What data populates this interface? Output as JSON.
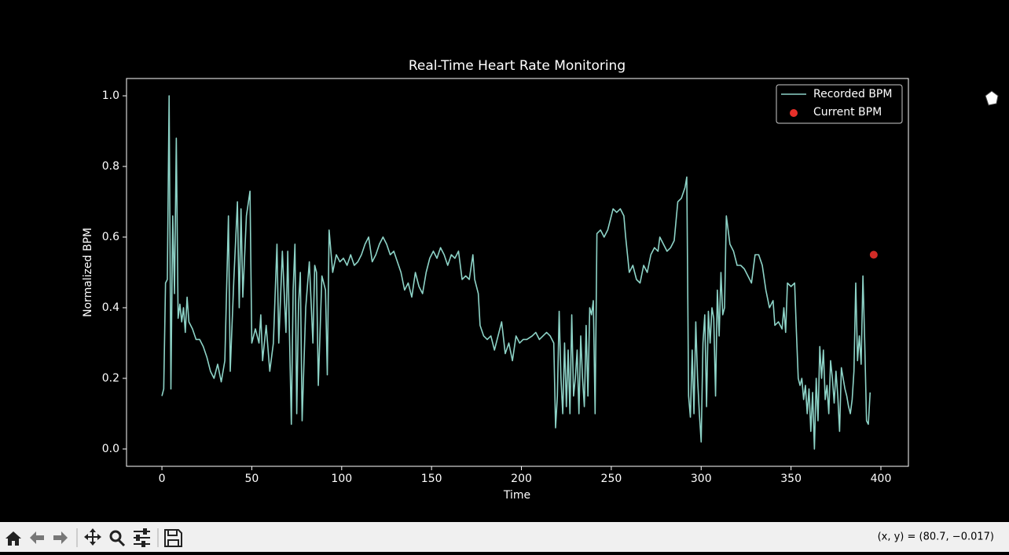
{
  "chart_data": {
    "type": "line",
    "title": "Real-Time Heart Rate Monitoring",
    "x_label": "Time",
    "y_label": "Normalized BPM",
    "xlim": [
      -19.7,
      415.3
    ],
    "ylim": [
      -0.049,
      1.049
    ],
    "xticks": [
      0,
      50,
      100,
      150,
      200,
      250,
      300,
      350,
      400
    ],
    "yticks": [
      {
        "value": 0,
        "label": "0.0"
      },
      0.2,
      0.4,
      0.6,
      0.8,
      {
        "value": 1,
        "label": "1.0"
      }
    ],
    "legend": "upper right",
    "series": [
      {
        "name": "Recorded BPM",
        "type": "line",
        "color": "#8dd3c7",
        "x": [
          0,
          1,
          2,
          3,
          4,
          5,
          6,
          7,
          8,
          9,
          10,
          11,
          12,
          13,
          14,
          15,
          17,
          19,
          21,
          23,
          25,
          27,
          29,
          31,
          33,
          35,
          37,
          38,
          40,
          42,
          43,
          44,
          45,
          47,
          49,
          50,
          52,
          54,
          55,
          56,
          58,
          60,
          62,
          64,
          65,
          67,
          69,
          70,
          72,
          73,
          74,
          75,
          76,
          77,
          78,
          80,
          82,
          84,
          85,
          86,
          87,
          89,
          91,
          92,
          93,
          95,
          97,
          99,
          101,
          103,
          105,
          107,
          109,
          111,
          113,
          115,
          117,
          119,
          121,
          123,
          125,
          127,
          129,
          131,
          133,
          135,
          137,
          139,
          141,
          143,
          145,
          147,
          149,
          151,
          153,
          155,
          157,
          159,
          161,
          163,
          165,
          167,
          169,
          171,
          173,
          174,
          176,
          177,
          179,
          181,
          183,
          185,
          187,
          189,
          191,
          193,
          195,
          197,
          199,
          201,
          203,
          206,
          208,
          210,
          212,
          214,
          216,
          218,
          219,
          220,
          221,
          222,
          223,
          224,
          225,
          226,
          227,
          228,
          229,
          230,
          231,
          232,
          233,
          234,
          235,
          236,
          237,
          238,
          239,
          240,
          241,
          242,
          244,
          246,
          248,
          250,
          251,
          253,
          255,
          257,
          258,
          259,
          260,
          262,
          264,
          266,
          268,
          270,
          272,
          274,
          276,
          277,
          279,
          281,
          283,
          285,
          287,
          289,
          291,
          292,
          293,
          294,
          295,
          296,
          297,
          298,
          299,
          300,
          301,
          302,
          303,
          304,
          305,
          306,
          307,
          308,
          309,
          310,
          311,
          312,
          313,
          314,
          316,
          318,
          320,
          322,
          324,
          326,
          328,
          330,
          332,
          334,
          336,
          338,
          340,
          341,
          343,
          345,
          346,
          347,
          348,
          350,
          352,
          353,
          354,
          355,
          356,
          357,
          358,
          359,
          360,
          361,
          362,
          363,
          364,
          365,
          366,
          367,
          368,
          369,
          370,
          371,
          372,
          373,
          374,
          375,
          376,
          377,
          378,
          379,
          380,
          381,
          382,
          383,
          384,
          385,
          386,
          387,
          388,
          389,
          390,
          391,
          392,
          393,
          394
        ],
        "values": [
          0.15,
          0.17,
          0.47,
          0.48,
          1.0,
          0.17,
          0.66,
          0.44,
          0.88,
          0.37,
          0.41,
          0.36,
          0.4,
          0.33,
          0.43,
          0.36,
          0.34,
          0.31,
          0.31,
          0.29,
          0.26,
          0.22,
          0.2,
          0.24,
          0.19,
          0.25,
          0.66,
          0.22,
          0.48,
          0.7,
          0.4,
          0.68,
          0.43,
          0.66,
          0.73,
          0.3,
          0.34,
          0.3,
          0.38,
          0.25,
          0.35,
          0.22,
          0.3,
          0.58,
          0.3,
          0.56,
          0.33,
          0.56,
          0.07,
          0.45,
          0.58,
          0.1,
          0.41,
          0.5,
          0.08,
          0.4,
          0.53,
          0.3,
          0.52,
          0.5,
          0.18,
          0.49,
          0.45,
          0.21,
          0.62,
          0.5,
          0.55,
          0.53,
          0.54,
          0.52,
          0.55,
          0.52,
          0.53,
          0.55,
          0.58,
          0.6,
          0.53,
          0.55,
          0.58,
          0.6,
          0.58,
          0.55,
          0.56,
          0.53,
          0.5,
          0.45,
          0.47,
          0.43,
          0.5,
          0.46,
          0.44,
          0.5,
          0.54,
          0.56,
          0.54,
          0.57,
          0.55,
          0.52,
          0.55,
          0.54,
          0.56,
          0.48,
          0.49,
          0.48,
          0.55,
          0.48,
          0.44,
          0.35,
          0.32,
          0.31,
          0.32,
          0.28,
          0.32,
          0.36,
          0.27,
          0.3,
          0.25,
          0.32,
          0.3,
          0.31,
          0.31,
          0.32,
          0.33,
          0.31,
          0.32,
          0.33,
          0.32,
          0.3,
          0.06,
          0.15,
          0.39,
          0.2,
          0.1,
          0.3,
          0.12,
          0.28,
          0.1,
          0.38,
          0.15,
          0.2,
          0.28,
          0.1,
          0.32,
          0.2,
          0.12,
          0.35,
          0.15,
          0.4,
          0.38,
          0.42,
          0.1,
          0.61,
          0.62,
          0.6,
          0.62,
          0.66,
          0.68,
          0.67,
          0.68,
          0.66,
          0.6,
          0.55,
          0.5,
          0.52,
          0.48,
          0.47,
          0.52,
          0.5,
          0.55,
          0.57,
          0.56,
          0.6,
          0.58,
          0.56,
          0.57,
          0.59,
          0.7,
          0.71,
          0.74,
          0.77,
          0.15,
          0.09,
          0.28,
          0.1,
          0.36,
          0.2,
          0.1,
          0.02,
          0.3,
          0.38,
          0.12,
          0.39,
          0.3,
          0.4,
          0.37,
          0.15,
          0.45,
          0.32,
          0.5,
          0.38,
          0.4,
          0.66,
          0.58,
          0.56,
          0.52,
          0.52,
          0.51,
          0.49,
          0.47,
          0.55,
          0.55,
          0.52,
          0.45,
          0.4,
          0.42,
          0.35,
          0.36,
          0.34,
          0.4,
          0.33,
          0.47,
          0.46,
          0.47,
          0.33,
          0.2,
          0.18,
          0.2,
          0.14,
          0.18,
          0.1,
          0.17,
          0.05,
          0.16,
          0.0,
          0.2,
          0.08,
          0.29,
          0.2,
          0.28,
          0.14,
          0.18,
          0.1,
          0.25,
          0.2,
          0.13,
          0.22,
          0.15,
          0.05,
          0.23,
          0.2,
          0.17,
          0.15,
          0.12,
          0.1,
          0.14,
          0.22,
          0.47,
          0.25,
          0.32,
          0.24,
          0.49,
          0.3,
          0.08,
          0.07,
          0.16
        ]
      },
      {
        "name": "Current BPM",
        "type": "scatter",
        "color": "#e8302a",
        "x": [
          396
        ],
        "values": [
          0.55
        ]
      }
    ]
  },
  "toolbar": {
    "coordinates": "(x, y) = (80.7, −0.017)"
  }
}
